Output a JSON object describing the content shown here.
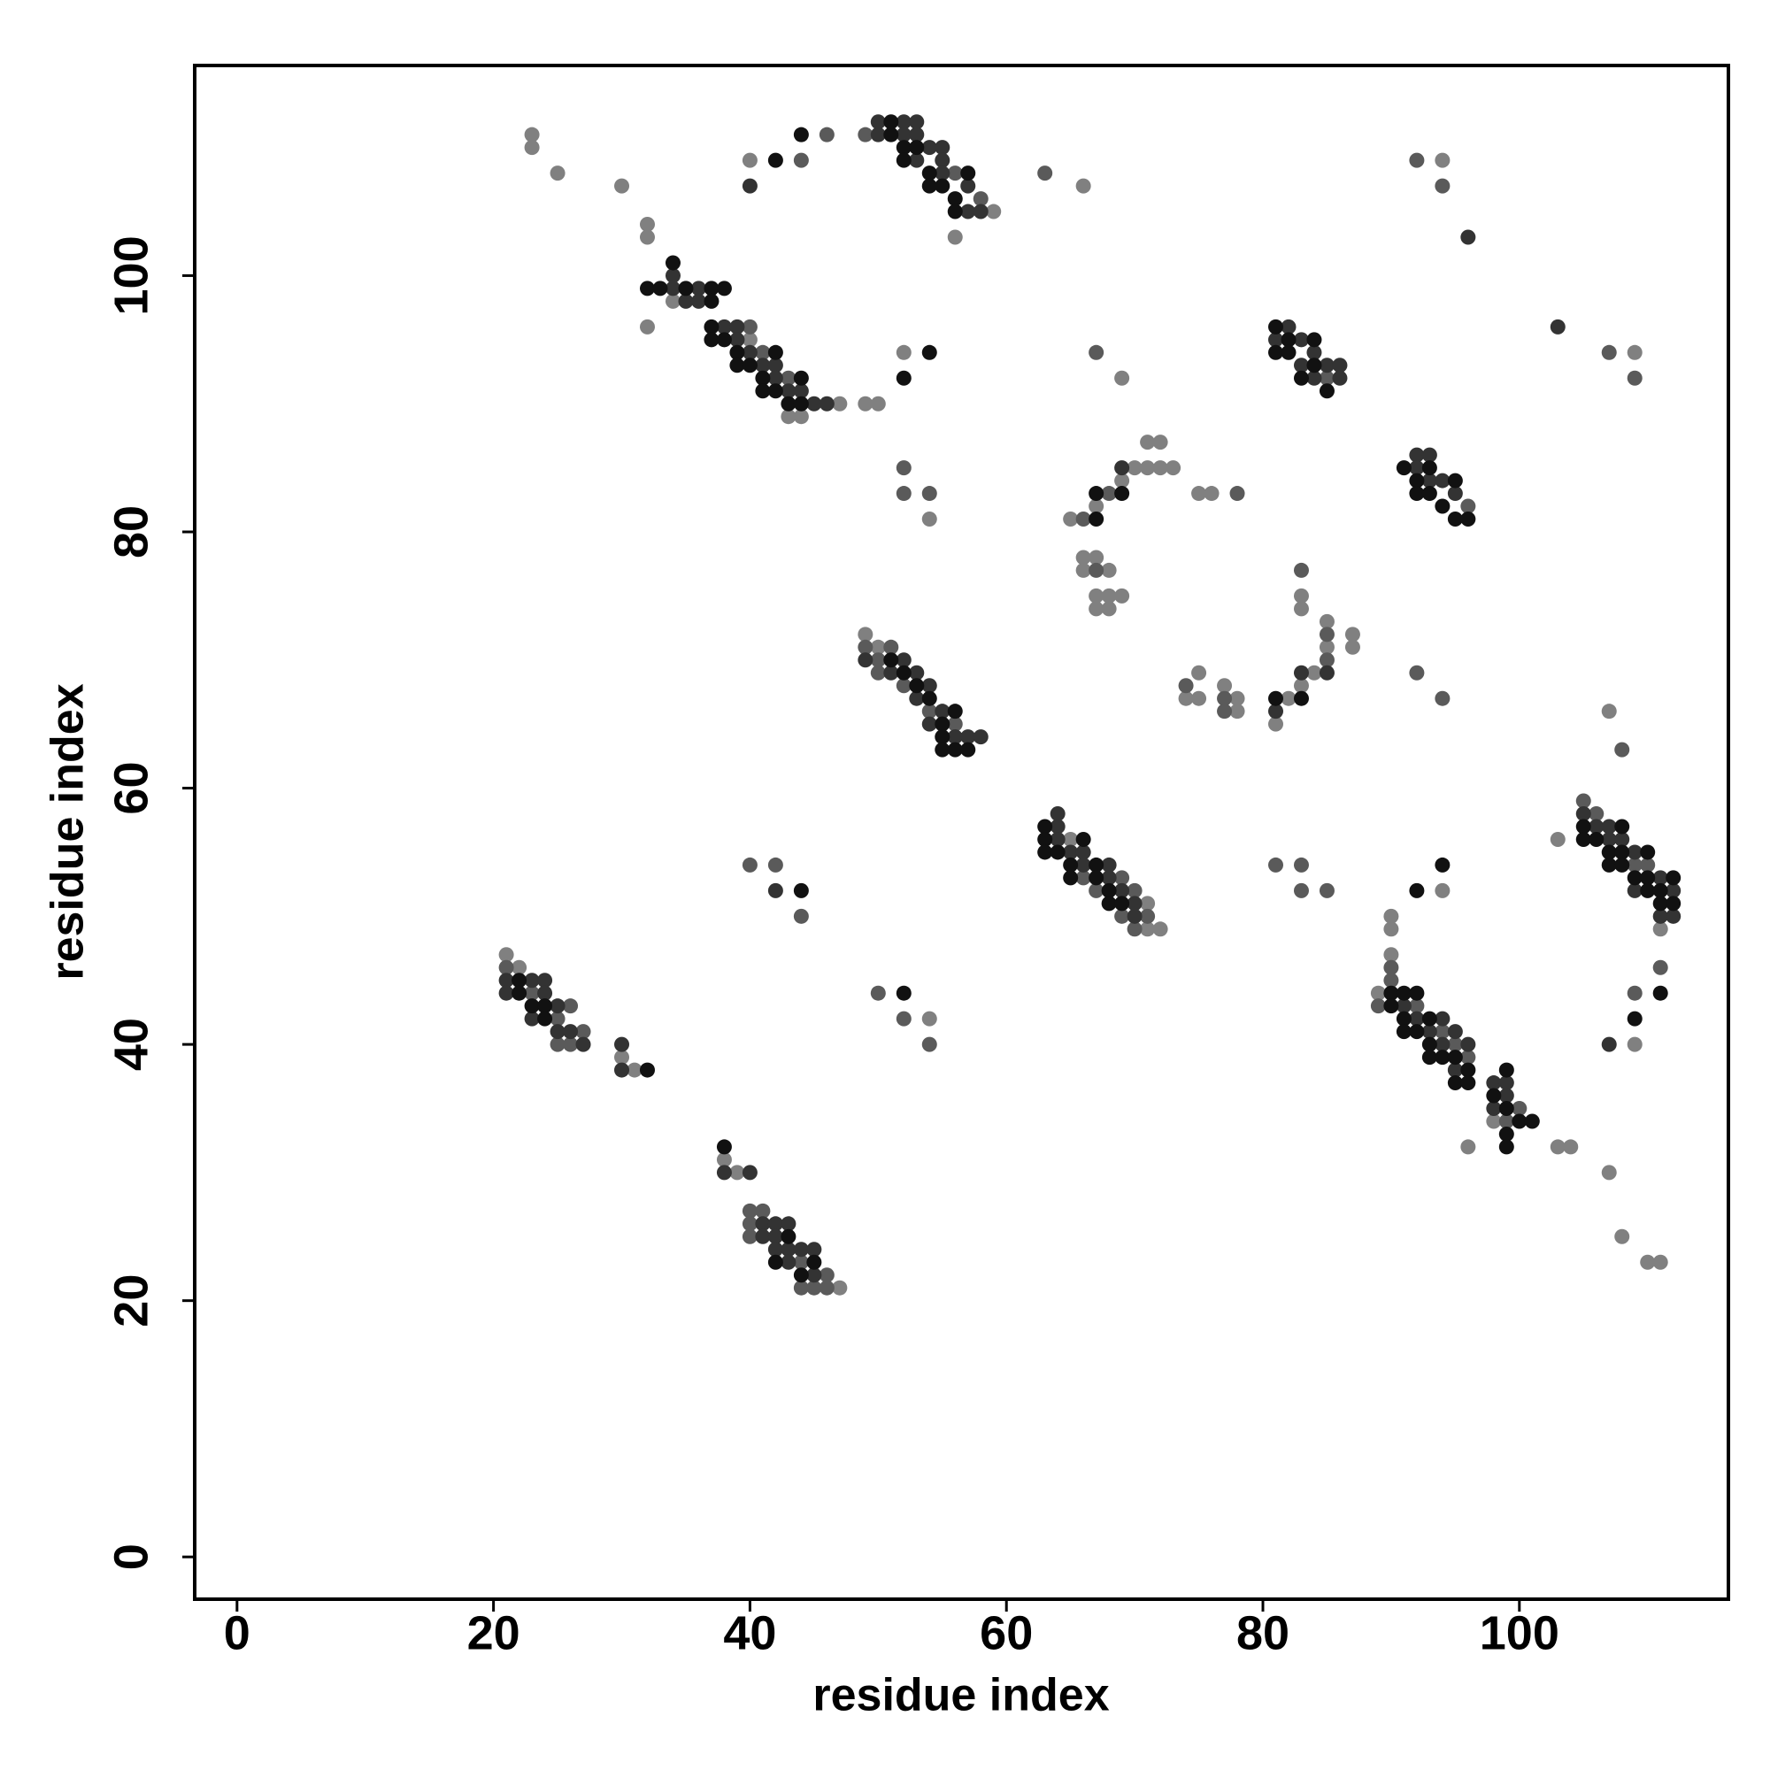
{
  "chart_data": {
    "type": "scatter",
    "xlabel": "residue index",
    "ylabel": "residue index",
    "xlim": [
      -3.3,
      116.3
    ],
    "ylim": [
      -3.3,
      116.4
    ],
    "xticks": [
      0,
      20,
      40,
      60,
      80,
      100
    ],
    "yticks": [
      0,
      20,
      40,
      60,
      80,
      100
    ],
    "series": [
      {
        "color": "#808080",
        "x": [
          23,
          23,
          25,
          30,
          32,
          32,
          32,
          40,
          59,
          56,
          66,
          34,
          40,
          43,
          44,
          47,
          49,
          50,
          52,
          54,
          65,
          67,
          69,
          70,
          71,
          71,
          72,
          72,
          73,
          75,
          76,
          66,
          66,
          67,
          68,
          67,
          67,
          68,
          68,
          69,
          69,
          94,
          109,
          49,
          50,
          74,
          75,
          75,
          77,
          78,
          78,
          81,
          82,
          83,
          84,
          85,
          85,
          83,
          83,
          87,
          87,
          107,
          65,
          71,
          71,
          72,
          54,
          103,
          111,
          109,
          94,
          90,
          90,
          90,
          89,
          98,
          96,
          103,
          104,
          107,
          108,
          110,
          111,
          21,
          22,
          30,
          31,
          38,
          39,
          47
        ],
        "y": [
          111,
          110,
          108,
          107,
          104,
          103,
          96,
          109,
          105,
          103,
          107,
          98,
          95,
          89,
          89,
          90,
          90,
          90,
          94,
          81,
          81,
          82,
          84,
          85,
          85,
          87,
          87,
          85,
          85,
          83,
          83,
          78,
          77,
          78,
          77,
          75,
          74,
          75,
          74,
          75,
          92,
          109,
          94,
          72,
          71,
          67,
          69,
          67,
          68,
          67,
          66,
          65,
          67,
          68,
          69,
          73,
          71,
          75,
          74,
          72,
          71,
          66,
          56,
          51,
          49,
          49,
          42,
          56,
          49,
          40,
          52,
          50,
          49,
          47,
          44,
          34,
          32,
          32,
          32,
          30,
          25,
          23,
          23,
          47,
          46,
          39,
          38,
          31,
          30,
          21
        ]
      },
      {
        "color": "#5a5a5a",
        "x": [
          44,
          46,
          49,
          56,
          58,
          63,
          40,
          41,
          43,
          52,
          52,
          54,
          66,
          68,
          78,
          67,
          67,
          92,
          94,
          107,
          109,
          85,
          96,
          49,
          50,
          50,
          51,
          52,
          54,
          56,
          74,
          77,
          77,
          85,
          85,
          83,
          92,
          94,
          108,
          66,
          67,
          69,
          69,
          70,
          70,
          71,
          81,
          83,
          83,
          85,
          40,
          42,
          44,
          50,
          52,
          54,
          105,
          106,
          109,
          110,
          111,
          109,
          90,
          90,
          89,
          92,
          94,
          95,
          96,
          99,
          100,
          21,
          23,
          25,
          25,
          26,
          26,
          27,
          40,
          40,
          40,
          41,
          44,
          45,
          46,
          46,
          44
        ],
        "y": [
          109,
          111,
          111,
          108,
          106,
          108,
          96,
          94,
          92,
          85,
          83,
          83,
          81,
          83,
          83,
          77,
          94,
          109,
          107,
          94,
          92,
          92,
          82,
          71,
          70,
          69,
          71,
          68,
          66,
          65,
          68,
          67,
          66,
          72,
          70,
          77,
          69,
          67,
          63,
          53,
          52,
          53,
          50,
          52,
          49,
          50,
          54,
          54,
          52,
          52,
          54,
          54,
          50,
          44,
          42,
          40,
          59,
          58,
          54,
          54,
          46,
          44,
          46,
          45,
          43,
          43,
          41,
          40,
          39,
          34,
          35,
          46,
          44,
          42,
          40,
          43,
          40,
          41,
          27,
          26,
          25,
          27,
          21,
          21,
          22,
          21,
          23
        ]
      },
      {
        "color": "#333333",
        "x": [
          40,
          50,
          50,
          52,
          52,
          53,
          53,
          53,
          54,
          55,
          55,
          55,
          57,
          57,
          58,
          34,
          34,
          35,
          36,
          36,
          38,
          39,
          39,
          40,
          41,
          42,
          42,
          43,
          44,
          45,
          46,
          69,
          81,
          82,
          83,
          83,
          84,
          84,
          85,
          86,
          86,
          92,
          92,
          93,
          93,
          94,
          95,
          96,
          103,
          49,
          51,
          52,
          53,
          53,
          54,
          54,
          55,
          56,
          57,
          58,
          81,
          83,
          85,
          64,
          64,
          64,
          65,
          66,
          66,
          68,
          68,
          69,
          70,
          70,
          42,
          105,
          106,
          107,
          107,
          108,
          109,
          109,
          111,
          111,
          112,
          112,
          107,
          91,
          92,
          93,
          94,
          94,
          95,
          95,
          96,
          98,
          98,
          99,
          99,
          21,
          21,
          23,
          23,
          24,
          24,
          25,
          25,
          26,
          27,
          30,
          30,
          38,
          40,
          41,
          41,
          42,
          42,
          42,
          43,
          43,
          43,
          44,
          45,
          45
        ],
        "y": [
          107,
          112,
          111,
          112,
          111,
          112,
          111,
          109,
          110,
          110,
          109,
          108,
          107,
          105,
          105,
          100,
          99,
          98,
          99,
          98,
          96,
          96,
          95,
          94,
          93,
          93,
          92,
          91,
          91,
          90,
          90,
          85,
          95,
          96,
          95,
          93,
          94,
          92,
          93,
          93,
          92,
          86,
          85,
          86,
          84,
          84,
          83,
          103,
          96,
          70,
          69,
          70,
          69,
          67,
          68,
          65,
          66,
          64,
          64,
          64,
          66,
          69,
          69,
          58,
          57,
          56,
          55,
          55,
          54,
          54,
          53,
          52,
          51,
          50,
          52,
          58,
          57,
          57,
          56,
          56,
          55,
          52,
          53,
          50,
          52,
          50,
          40,
          43,
          42,
          41,
          42,
          40,
          41,
          38,
          40,
          37,
          35,
          37,
          36,
          45,
          44,
          45,
          42,
          45,
          44,
          43,
          41,
          41,
          40,
          40,
          38,
          30,
          30,
          26,
          25,
          26,
          25,
          24,
          26,
          24,
          23,
          24,
          24,
          22
        ]
      },
      {
        "color": "#111111",
        "x": [
          42,
          44,
          51,
          51,
          52,
          52,
          53,
          54,
          54,
          55,
          56,
          56,
          57,
          32,
          33,
          34,
          35,
          37,
          37,
          38,
          37,
          37,
          38,
          39,
          39,
          40,
          41,
          41,
          42,
          42,
          43,
          44,
          44,
          52,
          54,
          67,
          67,
          69,
          81,
          81,
          82,
          82,
          83,
          84,
          84,
          85,
          91,
          92,
          92,
          93,
          93,
          94,
          95,
          95,
          96,
          51,
          52,
          53,
          54,
          55,
          55,
          55,
          56,
          56,
          57,
          81,
          83,
          63,
          63,
          63,
          64,
          65,
          65,
          66,
          67,
          67,
          68,
          68,
          69,
          44,
          52,
          105,
          105,
          106,
          107,
          107,
          108,
          108,
          108,
          109,
          110,
          110,
          110,
          111,
          111,
          112,
          112,
          111,
          109,
          92,
          94,
          90,
          90,
          91,
          91,
          91,
          92,
          92,
          93,
          93,
          93,
          94,
          95,
          95,
          96,
          96,
          98,
          99,
          99,
          99,
          99,
          100,
          101,
          22,
          22,
          23,
          24,
          24,
          32,
          38,
          42,
          43,
          44,
          45
        ],
        "y": [
          109,
          111,
          112,
          111,
          110,
          109,
          110,
          108,
          107,
          107,
          106,
          105,
          108,
          99,
          99,
          101,
          99,
          99,
          98,
          99,
          96,
          95,
          95,
          94,
          93,
          93,
          92,
          91,
          94,
          91,
          90,
          92,
          90,
          92,
          94,
          81,
          83,
          83,
          96,
          94,
          95,
          94,
          92,
          95,
          93,
          91,
          85,
          84,
          83,
          85,
          83,
          82,
          84,
          81,
          81,
          70,
          69,
          68,
          67,
          65,
          64,
          63,
          66,
          63,
          63,
          67,
          67,
          57,
          56,
          55,
          55,
          54,
          53,
          56,
          54,
          53,
          52,
          51,
          51,
          52,
          44,
          57,
          56,
          56,
          55,
          54,
          57,
          55,
          54,
          53,
          55,
          53,
          52,
          52,
          51,
          53,
          51,
          44,
          42,
          52,
          54,
          44,
          43,
          44,
          42,
          41,
          44,
          41,
          42,
          40,
          39,
          39,
          39,
          37,
          38,
          37,
          36,
          38,
          35,
          33,
          32,
          34,
          34,
          45,
          44,
          43,
          43,
          42,
          38,
          32,
          23,
          25,
          22,
          23
        ]
      }
    ]
  }
}
